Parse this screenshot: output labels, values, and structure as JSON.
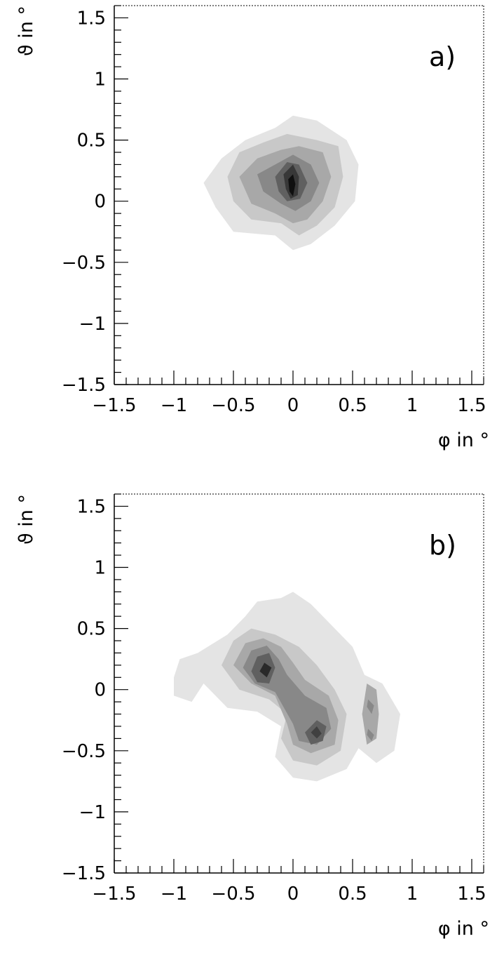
{
  "chart_data": [
    {
      "type": "contour",
      "panel_label": "a)",
      "xlabel": "φ in °",
      "ylabel": "ϑ in °",
      "xlim": [
        -1.5,
        1.6
      ],
      "ylim": [
        -1.5,
        1.6
      ],
      "xticks": [
        -1.5,
        -1,
        -0.5,
        0,
        0.5,
        1,
        1.5
      ],
      "xtick_labels": [
        "−1.5",
        "−1",
        "−0.5",
        "0",
        "0.5",
        "1",
        "1.5"
      ],
      "yticks": [
        -1.5,
        -1,
        -0.5,
        0,
        0.5,
        1,
        1.5
      ],
      "ytick_labels": [
        "−1.5",
        "−1",
        "−0.5",
        "0",
        "0.5",
        "1",
        "1.5"
      ],
      "grid": false,
      "levels": [
        {
          "fill": "#e4e4e4",
          "points": [
            [
              -0.75,
              0.15
            ],
            [
              -0.6,
              0.35
            ],
            [
              -0.4,
              0.5
            ],
            [
              -0.15,
              0.6
            ],
            [
              0.0,
              0.7
            ],
            [
              0.2,
              0.66
            ],
            [
              0.45,
              0.5
            ],
            [
              0.55,
              0.3
            ],
            [
              0.52,
              0.0
            ],
            [
              0.35,
              -0.2
            ],
            [
              0.15,
              -0.35
            ],
            [
              0.0,
              -0.4
            ],
            [
              -0.15,
              -0.28
            ],
            [
              -0.5,
              -0.25
            ],
            [
              -0.65,
              -0.05
            ]
          ]
        },
        {
          "fill": "#c8c8c8",
          "points": [
            [
              -0.55,
              0.2
            ],
            [
              -0.45,
              0.4
            ],
            [
              -0.25,
              0.48
            ],
            [
              -0.05,
              0.55
            ],
            [
              0.2,
              0.5
            ],
            [
              0.38,
              0.45
            ],
            [
              0.42,
              0.2
            ],
            [
              0.35,
              -0.05
            ],
            [
              0.2,
              -0.2
            ],
            [
              0.05,
              -0.28
            ],
            [
              -0.1,
              -0.18
            ],
            [
              -0.35,
              -0.15
            ],
            [
              -0.5,
              0.0
            ]
          ]
        },
        {
          "fill": "#a8a8a8",
          "points": [
            [
              -0.45,
              0.2
            ],
            [
              -0.3,
              0.35
            ],
            [
              -0.1,
              0.42
            ],
            [
              0.05,
              0.45
            ],
            [
              0.25,
              0.4
            ],
            [
              0.32,
              0.2
            ],
            [
              0.25,
              0.0
            ],
            [
              0.12,
              -0.15
            ],
            [
              0.0,
              -0.18
            ],
            [
              -0.15,
              -0.1
            ],
            [
              -0.35,
              -0.02
            ]
          ]
        },
        {
          "fill": "#888888",
          "points": [
            [
              -0.3,
              0.22
            ],
            [
              -0.15,
              0.3
            ],
            [
              0.0,
              0.38
            ],
            [
              0.15,
              0.3
            ],
            [
              0.22,
              0.15
            ],
            [
              0.15,
              0.0
            ],
            [
              0.02,
              -0.08
            ],
            [
              -0.1,
              -0.02
            ],
            [
              -0.25,
              0.08
            ]
          ]
        },
        {
          "fill": "#606060",
          "points": [
            [
              -0.15,
              0.2
            ],
            [
              -0.05,
              0.32
            ],
            [
              0.05,
              0.3
            ],
            [
              0.12,
              0.15
            ],
            [
              0.06,
              0.02
            ],
            [
              -0.05,
              0.0
            ],
            [
              -0.12,
              0.08
            ]
          ]
        },
        {
          "fill": "#383838",
          "points": [
            [
              -0.08,
              0.22
            ],
            [
              0.0,
              0.3
            ],
            [
              0.05,
              0.2
            ],
            [
              0.04,
              0.05
            ],
            [
              -0.02,
              0.02
            ],
            [
              -0.06,
              0.1
            ]
          ]
        },
        {
          "fill": "#101010",
          "points": [
            [
              -0.04,
              0.18
            ],
            [
              0.0,
              0.22
            ],
            [
              0.02,
              0.14
            ],
            [
              0.0,
              0.04
            ],
            [
              -0.03,
              0.08
            ]
          ]
        }
      ]
    },
    {
      "type": "contour",
      "panel_label": "b)",
      "xlabel": "φ in °",
      "ylabel": "ϑ in °",
      "xlim": [
        -1.5,
        1.6
      ],
      "ylim": [
        -1.5,
        1.6
      ],
      "xticks": [
        -1.5,
        -1,
        -0.5,
        0,
        0.5,
        1,
        1.5
      ],
      "xtick_labels": [
        "−1.5",
        "−1",
        "−0.5",
        "0",
        "0.5",
        "1",
        "1.5"
      ],
      "yticks": [
        -1.5,
        -1,
        -0.5,
        0,
        0.5,
        1,
        1.5
      ],
      "ytick_labels": [
        "−1.5",
        "−1",
        "−0.5",
        "0",
        "0.5",
        "1",
        "1.5"
      ],
      "grid": false,
      "levels": [
        {
          "fill": "#e4e4e4",
          "points": [
            [
              -1.0,
              0.1
            ],
            [
              -0.95,
              0.25
            ],
            [
              -0.8,
              0.3
            ],
            [
              -0.55,
              0.45
            ],
            [
              -0.4,
              0.6
            ],
            [
              -0.3,
              0.72
            ],
            [
              -0.1,
              0.75
            ],
            [
              0.0,
              0.8
            ],
            [
              0.15,
              0.7
            ],
            [
              0.3,
              0.55
            ],
            [
              0.5,
              0.35
            ],
            [
              0.6,
              0.12
            ],
            [
              0.75,
              0.05
            ],
            [
              0.9,
              -0.2
            ],
            [
              0.85,
              -0.5
            ],
            [
              0.7,
              -0.6
            ],
            [
              0.55,
              -0.48
            ],
            [
              0.45,
              -0.65
            ],
            [
              0.2,
              -0.75
            ],
            [
              0.0,
              -0.72
            ],
            [
              -0.15,
              -0.55
            ],
            [
              -0.1,
              -0.3
            ],
            [
              -0.3,
              -0.18
            ],
            [
              -0.55,
              -0.15
            ],
            [
              -0.75,
              0.05
            ],
            [
              -0.85,
              -0.1
            ],
            [
              -1.0,
              -0.05
            ]
          ]
        },
        {
          "fill": "#c8c8c8",
          "points": [
            [
              -0.6,
              0.2
            ],
            [
              -0.5,
              0.4
            ],
            [
              -0.35,
              0.5
            ],
            [
              -0.15,
              0.45
            ],
            [
              0.05,
              0.35
            ],
            [
              0.2,
              0.2
            ],
            [
              0.35,
              0.0
            ],
            [
              0.45,
              -0.2
            ],
            [
              0.4,
              -0.5
            ],
            [
              0.2,
              -0.62
            ],
            [
              0.0,
              -0.58
            ],
            [
              -0.1,
              -0.4
            ],
            [
              -0.05,
              -0.2
            ],
            [
              -0.2,
              -0.08
            ],
            [
              -0.45,
              0.0
            ]
          ]
        },
        {
          "fill": "#a8a8a8",
          "points": [
            [
              -0.5,
              0.2
            ],
            [
              -0.4,
              0.38
            ],
            [
              -0.25,
              0.42
            ],
            [
              -0.1,
              0.35
            ],
            [
              0.0,
              0.22
            ],
            [
              0.1,
              0.08
            ],
            [
              0.3,
              -0.05
            ],
            [
              0.38,
              -0.25
            ],
            [
              0.35,
              -0.45
            ],
            [
              0.15,
              -0.52
            ],
            [
              0.0,
              -0.45
            ],
            [
              -0.05,
              -0.28
            ],
            [
              -0.15,
              -0.05
            ],
            [
              -0.35,
              0.05
            ]
          ]
        },
        {
          "fill": "#888888",
          "points": [
            [
              -0.42,
              0.18
            ],
            [
              -0.35,
              0.32
            ],
            [
              -0.22,
              0.36
            ],
            [
              -0.12,
              0.25
            ],
            [
              -0.05,
              0.12
            ],
            [
              0.1,
              -0.05
            ],
            [
              0.28,
              -0.15
            ],
            [
              0.32,
              -0.32
            ],
            [
              0.2,
              -0.45
            ],
            [
              0.05,
              -0.42
            ],
            [
              0.0,
              -0.28
            ],
            [
              -0.15,
              -0.02
            ],
            [
              -0.32,
              0.05
            ]
          ]
        },
        {
          "fill": "#606060",
          "points": [
            [
              -0.35,
              0.15
            ],
            [
              -0.3,
              0.27
            ],
            [
              -0.2,
              0.3
            ],
            [
              -0.15,
              0.18
            ],
            [
              -0.2,
              0.05
            ],
            [
              -0.3,
              0.06
            ]
          ]
        },
        {
          "fill": "#606060",
          "points": [
            [
              0.1,
              -0.35
            ],
            [
              0.2,
              -0.25
            ],
            [
              0.28,
              -0.3
            ],
            [
              0.25,
              -0.42
            ],
            [
              0.15,
              -0.45
            ]
          ]
        },
        {
          "fill": "#2a2a2a",
          "points": [
            [
              -0.28,
              0.15
            ],
            [
              -0.24,
              0.22
            ],
            [
              -0.18,
              0.18
            ],
            [
              -0.22,
              0.1
            ]
          ]
        },
        {
          "fill": "#404040",
          "points": [
            [
              0.15,
              -0.35
            ],
            [
              0.2,
              -0.3
            ],
            [
              0.24,
              -0.36
            ],
            [
              0.2,
              -0.4
            ]
          ]
        },
        {
          "fill": "#a8a8a8",
          "points": [
            [
              0.62,
              0.05
            ],
            [
              0.7,
              0.0
            ],
            [
              0.72,
              -0.2
            ],
            [
              0.7,
              -0.4
            ],
            [
              0.62,
              -0.45
            ],
            [
              0.58,
              -0.2
            ]
          ]
        },
        {
          "fill": "#888888",
          "points": [
            [
              0.63,
              -0.08
            ],
            [
              0.68,
              -0.13
            ],
            [
              0.66,
              -0.2
            ],
            [
              0.62,
              -0.14
            ]
          ]
        },
        {
          "fill": "#888888",
          "points": [
            [
              0.63,
              -0.32
            ],
            [
              0.68,
              -0.37
            ],
            [
              0.66,
              -0.42
            ],
            [
              0.62,
              -0.37
            ]
          ]
        }
      ]
    }
  ]
}
